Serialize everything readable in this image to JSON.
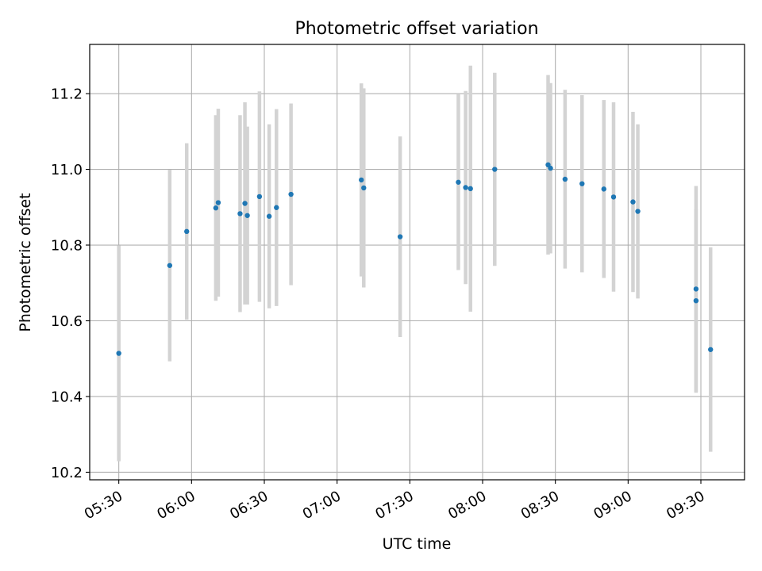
{
  "chart_data": {
    "type": "scatter",
    "title": "Photometric offset variation",
    "xlabel": "UTC time",
    "ylabel": "Photometric offset",
    "xlim": [
      "05:18",
      "09:48"
    ],
    "ylim": [
      10.18,
      11.33
    ],
    "x_ticks": [
      "05:30",
      "06:00",
      "06:30",
      "07:00",
      "07:30",
      "08:00",
      "08:30",
      "09:00",
      "09:30"
    ],
    "y_ticks": [
      10.2,
      10.4,
      10.6,
      10.8,
      11.0,
      11.2
    ],
    "y_tick_labels": [
      "10.2",
      "10.4",
      "10.6",
      "10.8",
      "11.0",
      "11.2"
    ],
    "grid": true,
    "point_color": "#1f77b4",
    "errorbar_color": "#d3d3d3",
    "series": [
      {
        "points": [
          {
            "x": "05:30",
            "y": 10.514,
            "yerr": 0.285
          },
          {
            "x": "05:51",
            "y": 10.746,
            "yerr": 0.253
          },
          {
            "x": "05:58",
            "y": 10.836,
            "yerr": 0.233
          },
          {
            "x": "06:10",
            "y": 10.898,
            "yerr": 0.245
          },
          {
            "x": "06:11",
            "y": 10.912,
            "yerr": 0.248
          },
          {
            "x": "06:20",
            "y": 10.883,
            "yerr": 0.26
          },
          {
            "x": "06:22",
            "y": 10.91,
            "yerr": 0.267
          },
          {
            "x": "06:23",
            "y": 10.878,
            "yerr": 0.235
          },
          {
            "x": "06:28",
            "y": 10.928,
            "yerr": 0.278
          },
          {
            "x": "06:32",
            "y": 10.876,
            "yerr": 0.243
          },
          {
            "x": "06:35",
            "y": 10.899,
            "yerr": 0.26
          },
          {
            "x": "06:41",
            "y": 10.934,
            "yerr": 0.24
          },
          {
            "x": "07:10",
            "y": 10.972,
            "yerr": 0.255
          },
          {
            "x": "07:11",
            "y": 10.951,
            "yerr": 0.263
          },
          {
            "x": "07:26",
            "y": 10.822,
            "yerr": 0.265
          },
          {
            "x": "07:50",
            "y": 10.966,
            "yerr": 0.232
          },
          {
            "x": "07:53",
            "y": 10.952,
            "yerr": 0.255
          },
          {
            "x": "07:55",
            "y": 10.949,
            "yerr": 0.325
          },
          {
            "x": "08:05",
            "y": 11.0,
            "yerr": 0.255
          },
          {
            "x": "08:27",
            "y": 11.012,
            "yerr": 0.237
          },
          {
            "x": "08:28",
            "y": 11.003,
            "yerr": 0.225
          },
          {
            "x": "08:34",
            "y": 10.974,
            "yerr": 0.236
          },
          {
            "x": "08:41",
            "y": 10.962,
            "yerr": 0.234
          },
          {
            "x": "08:50",
            "y": 10.948,
            "yerr": 0.235
          },
          {
            "x": "08:54",
            "y": 10.927,
            "yerr": 0.25
          },
          {
            "x": "09:02",
            "y": 10.914,
            "yerr": 0.238
          },
          {
            "x": "09:04",
            "y": 10.889,
            "yerr": 0.23
          },
          {
            "x": "09:28",
            "y": 10.684,
            "yerr": 0.272
          },
          {
            "x": "09:28",
            "y": 10.653,
            "yerr": 0.243
          },
          {
            "x": "09:34",
            "y": 10.524,
            "yerr": 0.27
          }
        ]
      }
    ]
  }
}
